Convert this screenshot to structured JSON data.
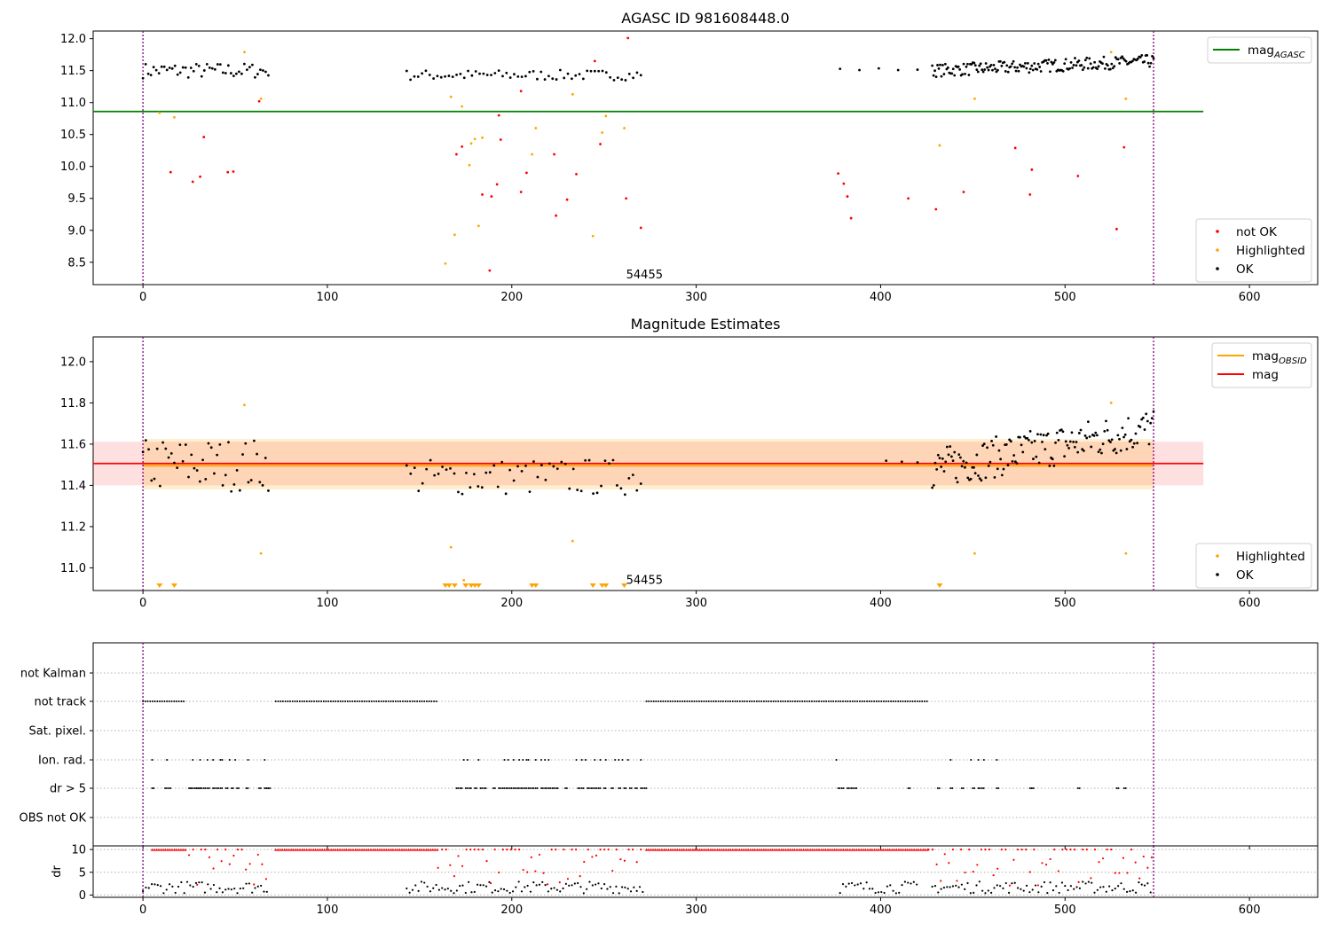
{
  "colors": {
    "ok": "#000000",
    "highlighted": "#ffa500",
    "not_ok": "#ff0000",
    "agasc_line": "#008000",
    "mag_line": "#ff0000",
    "mag_obsid_line": "#ffa500",
    "obs_boundary": "#800080",
    "grid": "#b0b0b0"
  },
  "chart_data": [
    {
      "type": "scatter",
      "title": "AGASC ID 981608448.0",
      "xlim": [
        -27,
        637
      ],
      "ylim": [
        8.15,
        12.12
      ],
      "xticks": [
        0,
        100,
        200,
        300,
        400,
        500,
        600
      ],
      "yticks": [
        8.5,
        9.0,
        9.5,
        10.0,
        10.5,
        11.0,
        11.5,
        12.0
      ],
      "ytick_labels": [
        "8.5",
        "9.0",
        "9.5",
        "10.0",
        "10.5",
        "11.0",
        "11.5",
        "12.0"
      ],
      "obs_boundaries": [
        0,
        548
      ],
      "annotation": {
        "text": "54455",
        "x": 262,
        "y": 8.3
      },
      "hline": {
        "name": "mag",
        "name_sub": "AGASC",
        "y": 10.86,
        "x0": -27,
        "x1": 575
      },
      "legend_lines": [
        {
          "name": "mag",
          "sub": "AGASC",
          "color": "#008000"
        }
      ],
      "legend_points": [
        {
          "name": "not OK",
          "color": "#ff0000"
        },
        {
          "name": "Highlighted",
          "color": "#ffa500"
        },
        {
          "name": "OK",
          "color": "#000000"
        }
      ],
      "ok_clusters": [
        {
          "x0": 0,
          "x1": 68,
          "n": 48,
          "y": 11.5,
          "spread": 0.12
        },
        {
          "x0": 143,
          "x1": 270,
          "n": 62,
          "y": 11.43,
          "spread": 0.08
        },
        {
          "x0": 378,
          "x1": 420,
          "n": 5,
          "y": 11.52,
          "spread": 0.02
        },
        {
          "x0": 428,
          "x1": 548,
          "n": 170,
          "y": 11.5,
          "spread": 0.1,
          "trend": 0.15
        }
      ],
      "highlighted": [
        [
          9,
          10.84
        ],
        [
          17,
          10.77
        ],
        [
          55,
          11.79
        ],
        [
          64,
          11.06
        ],
        [
          164,
          8.48
        ],
        [
          167,
          11.09
        ],
        [
          169,
          8.93
        ],
        [
          173,
          10.94
        ],
        [
          177,
          10.02
        ],
        [
          178,
          10.36
        ],
        [
          180,
          10.43
        ],
        [
          182,
          9.07
        ],
        [
          184,
          10.45
        ],
        [
          211,
          10.19
        ],
        [
          213,
          10.6
        ],
        [
          233,
          11.13
        ],
        [
          244,
          8.91
        ],
        [
          249,
          10.53
        ],
        [
          251,
          10.79
        ],
        [
          261,
          10.6
        ],
        [
          525,
          11.79
        ],
        [
          432,
          10.33
        ],
        [
          451,
          11.06
        ],
        [
          533,
          11.06
        ]
      ],
      "not_ok": [
        [
          15,
          9.91
        ],
        [
          27,
          9.76
        ],
        [
          31,
          9.84
        ],
        [
          33,
          10.46
        ],
        [
          46,
          9.91
        ],
        [
          49,
          9.92
        ],
        [
          63,
          11.02
        ],
        [
          170,
          10.19
        ],
        [
          173,
          10.31
        ],
        [
          184,
          9.56
        ],
        [
          188,
          8.37
        ],
        [
          189,
          9.53
        ],
        [
          192,
          9.72
        ],
        [
          193,
          10.8
        ],
        [
          194,
          10.42
        ],
        [
          205,
          9.6
        ],
        [
          205,
          11.18
        ],
        [
          208,
          9.9
        ],
        [
          223,
          10.19
        ],
        [
          224,
          9.23
        ],
        [
          230,
          9.48
        ],
        [
          235,
          9.88
        ],
        [
          245,
          11.65
        ],
        [
          248,
          10.35
        ],
        [
          262,
          9.5
        ],
        [
          263,
          12.01
        ],
        [
          270,
          9.04
        ],
        [
          377,
          9.89
        ],
        [
          380,
          9.73
        ],
        [
          382,
          9.53
        ],
        [
          384,
          9.19
        ],
        [
          415,
          9.5
        ],
        [
          430,
          9.33
        ],
        [
          445,
          9.6
        ],
        [
          473,
          10.29
        ],
        [
          481,
          9.56
        ],
        [
          482,
          9.95
        ],
        [
          507,
          9.85
        ],
        [
          528,
          9.02
        ],
        [
          532,
          10.3
        ]
      ]
    },
    {
      "type": "scatter",
      "title": "Magnitude Estimates",
      "xlim": [
        -27,
        637
      ],
      "ylim": [
        10.89,
        12.12
      ],
      "xticks": [
        0,
        100,
        200,
        300,
        400,
        500,
        600
      ],
      "yticks": [
        11.0,
        11.2,
        11.4,
        11.6,
        11.8,
        12.0
      ],
      "ytick_labels": [
        "11.0",
        "11.2",
        "11.4",
        "11.6",
        "11.8",
        "12.0"
      ],
      "obs_boundaries": [
        0,
        548
      ],
      "annotation": {
        "text": "54455",
        "x": 262,
        "y": 10.94
      },
      "mag": {
        "y": 11.506,
        "lo": 11.4,
        "hi": 11.612,
        "x0": -27,
        "x1": 575
      },
      "mag_obsid": {
        "y": 11.504,
        "lo": 11.38,
        "hi": 11.625,
        "x0": 0,
        "x1": 548
      },
      "legend_lines": [
        {
          "name": "mag",
          "sub": "OBSID",
          "color": "#ffa500"
        },
        {
          "name": "mag",
          "sub": "",
          "color": "#ff0000"
        }
      ],
      "legend_points": [
        {
          "name": "Highlighted",
          "color": "#ffa500"
        },
        {
          "name": "OK",
          "color": "#000000"
        }
      ],
      "ok_clusters": [
        {
          "x0": 0,
          "x1": 68,
          "n": 45,
          "y": 11.5,
          "spread": 0.13
        },
        {
          "x0": 143,
          "x1": 270,
          "n": 60,
          "y": 11.44,
          "spread": 0.09
        },
        {
          "x0": 403,
          "x1": 420,
          "n": 3,
          "y": 11.52,
          "spread": 0.01
        },
        {
          "x0": 428,
          "x1": 548,
          "n": 150,
          "y": 11.48,
          "spread": 0.1,
          "trend": 0.2
        }
      ],
      "highlighted": [
        [
          55,
          11.79
        ],
        [
          64,
          11.07
        ],
        [
          167,
          11.1
        ],
        [
          174,
          10.94
        ],
        [
          233,
          11.13
        ],
        [
          451,
          11.07
        ],
        [
          525,
          11.8
        ],
        [
          533,
          11.07
        ]
      ],
      "highlighted_triangles": [
        9,
        17,
        164,
        166,
        169,
        175,
        178,
        180,
        182,
        211,
        213,
        244,
        249,
        251,
        261,
        432
      ]
    },
    {
      "type": "flags",
      "xlim": [
        -27,
        637
      ],
      "xticks": [
        0,
        100,
        200,
        300,
        400,
        500,
        600
      ],
      "obs_boundaries": [
        0,
        548
      ],
      "rows": [
        "not Kalman",
        "not track",
        "Sat. pixel.",
        "Ion. rad.",
        "dr > 5",
        "OBS not OK"
      ],
      "not_track": [
        [
          0,
          23
        ],
        [
          72,
          160
        ],
        [
          273,
          426
        ]
      ],
      "ion_rad_sparse": [
        5,
        13,
        27,
        31,
        35,
        38,
        42,
        43,
        47,
        50,
        57,
        66,
        174,
        176,
        182,
        196,
        198,
        201,
        204,
        206,
        208,
        209,
        213,
        216,
        218,
        220,
        235,
        238,
        240,
        245,
        248,
        251,
        256,
        258,
        260,
        263,
        270,
        376,
        438,
        449,
        453,
        456,
        463
      ],
      "dr_gt_5_sparse": [
        5,
        12,
        14,
        25,
        26,
        28,
        29,
        30,
        31,
        33,
        35,
        38,
        40,
        42,
        45,
        48,
        51,
        56,
        63,
        66,
        67,
        68,
        170,
        172,
        175,
        177,
        180,
        183,
        185,
        190,
        193,
        195,
        197,
        199,
        201,
        203,
        205,
        207,
        209,
        211,
        213,
        216,
        218,
        220,
        222,
        224,
        229,
        236,
        238,
        241,
        243,
        245,
        247,
        250,
        254,
        258,
        261,
        264,
        267,
        270,
        272,
        377,
        379,
        382,
        384,
        386,
        415,
        431,
        438,
        444,
        450,
        453,
        455,
        463,
        481,
        482,
        507,
        528,
        532
      ]
    },
    {
      "type": "scatter",
      "ylabel": "dr",
      "xlim": [
        -27,
        637
      ],
      "ylim": [
        -0.5,
        10.8
      ],
      "xticks": [
        0,
        100,
        200,
        300,
        400,
        500,
        600
      ],
      "xtick_labels": [
        "0",
        "100",
        "200",
        "300",
        "400",
        "500",
        "600"
      ],
      "yticks": [
        0,
        5,
        10
      ],
      "ytick_labels": [
        "0",
        "5",
        "10"
      ],
      "obs_boundaries": [
        0,
        548
      ],
      "red_line_ranges": [
        [
          5,
          23
        ],
        [
          72,
          160
        ],
        [
          273,
          426
        ]
      ],
      "red_sparse_ranges": [
        [
          25,
          68
        ],
        [
          160,
          272
        ],
        [
          426,
          548
        ]
      ],
      "black_ranges": [
        [
          0,
          68
        ],
        [
          143,
          272
        ],
        [
          378,
          420
        ],
        [
          428,
          548
        ]
      ]
    }
  ]
}
